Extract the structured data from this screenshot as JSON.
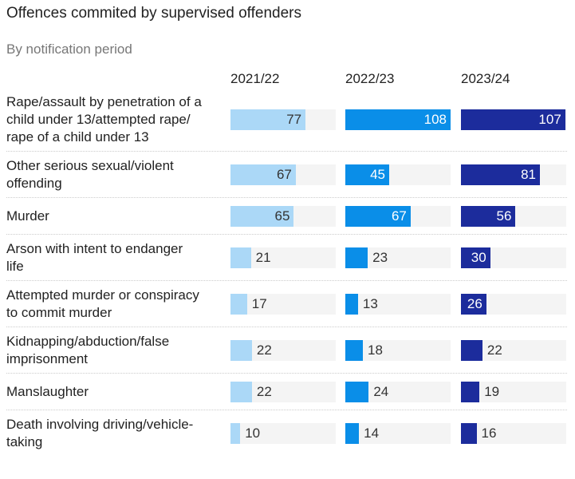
{
  "chart_data": {
    "type": "bar",
    "title": "Offences commited by supervised offenders",
    "subtitle": "By notification period",
    "categories": [
      [
        "Rape/assault by penetration of a",
        "child under 13/attempted rape/",
        "rape of a child under 13"
      ],
      [
        "Other serious sexual/violent",
        "offending"
      ],
      [
        "Murder"
      ],
      [
        "Arson with intent to endanger",
        "life"
      ],
      [
        "Attempted murder or conspiracy",
        "to commit murder"
      ],
      [
        "Kidnapping/abduction/false",
        "imprisonment"
      ],
      [
        "Manslaughter"
      ],
      [
        "Death involving driving/vehicle-",
        "taking"
      ]
    ],
    "series": [
      {
        "name": "2021/22",
        "color": "#abd8f7",
        "text_color": "#333333",
        "values": [
          77,
          67,
          65,
          21,
          17,
          22,
          22,
          10
        ]
      },
      {
        "name": "2022/23",
        "color": "#0a8ee8",
        "text_color": "#ffffff",
        "values": [
          108,
          45,
          67,
          23,
          13,
          18,
          24,
          14
        ]
      },
      {
        "name": "2023/24",
        "color": "#1c2c9c",
        "text_color": "#ffffff",
        "values": [
          107,
          81,
          56,
          30,
          26,
          22,
          19,
          16
        ]
      }
    ],
    "xlim": [
      0,
      108
    ],
    "track_color": "#f4f4f4",
    "layout": "small-multiples horizontal bars, one column per period"
  }
}
